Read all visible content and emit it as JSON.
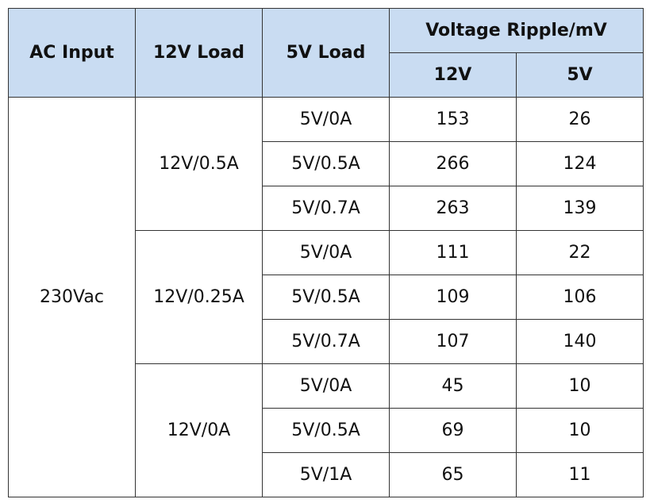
{
  "table": {
    "header": {
      "ac_input": "AC Input",
      "load_12v": "12V Load",
      "load_5v": "5V Load",
      "ripple": "Voltage Ripple/mV",
      "ripple_12v": "12V",
      "ripple_5v": "5V"
    },
    "ac_input": "230Vac",
    "groups": [
      {
        "load_12v": "12V/0.5A",
        "rows": [
          [
            "5V/0A",
            153,
            26
          ],
          [
            "5V/0.5A",
            266,
            124
          ],
          [
            "5V/0.7A",
            263,
            139
          ]
        ]
      },
      {
        "load_12v": "12V/0.25A",
        "rows": [
          [
            "5V/0A",
            111,
            22
          ],
          [
            "5V/0.5A",
            109,
            106
          ],
          [
            "5V/0.7A",
            107,
            140
          ]
        ]
      },
      {
        "load_12v": "12V/0A",
        "rows": [
          [
            "5V/0A",
            45,
            10
          ],
          [
            "5V/0.5A",
            69,
            10
          ],
          [
            "5V/1A",
            65,
            11
          ]
        ]
      }
    ]
  }
}
